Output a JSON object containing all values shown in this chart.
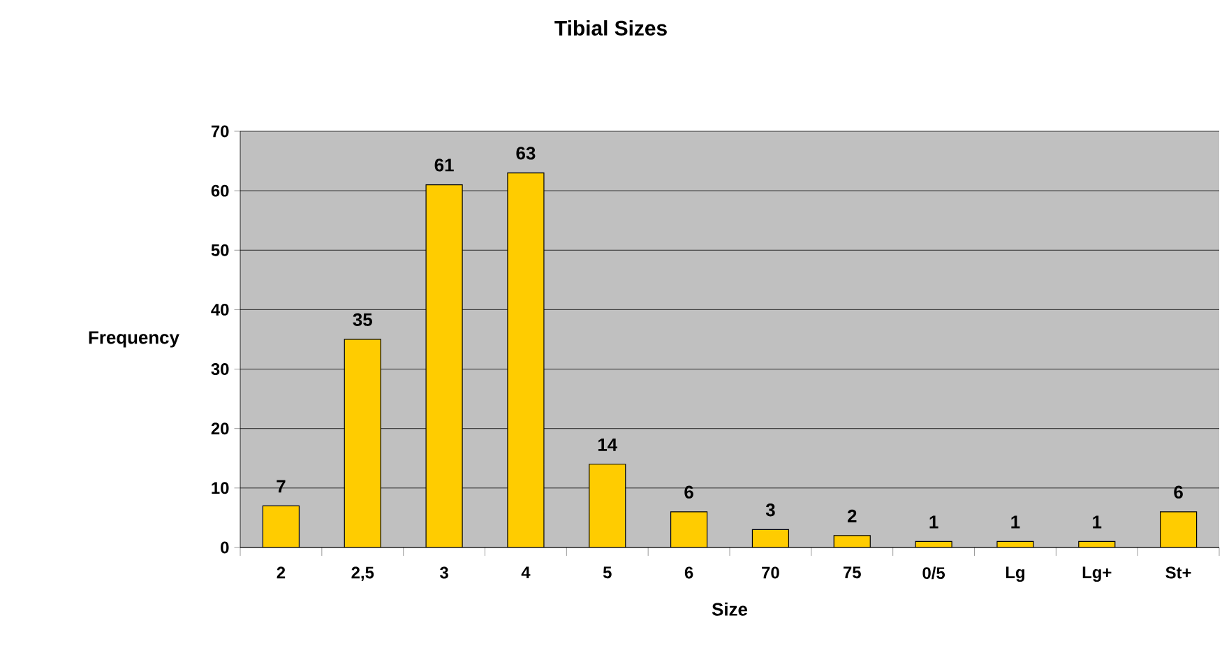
{
  "chart_data": {
    "type": "bar",
    "title": "Tibial Sizes",
    "xlabel": "Size",
    "ylabel": "Frequency",
    "categories": [
      "2",
      "2,5",
      "3",
      "4",
      "5",
      "6",
      "70",
      "75",
      "0/5",
      "Lg",
      "Lg+",
      "St+"
    ],
    "values": [
      7,
      35,
      61,
      63,
      14,
      6,
      3,
      2,
      1,
      1,
      1,
      6
    ],
    "color": "#ffcc00",
    "ylim": [
      0,
      70
    ],
    "yticks": [
      0,
      10,
      20,
      30,
      40,
      50,
      60,
      70
    ],
    "grid": "y",
    "data_labels": true
  }
}
